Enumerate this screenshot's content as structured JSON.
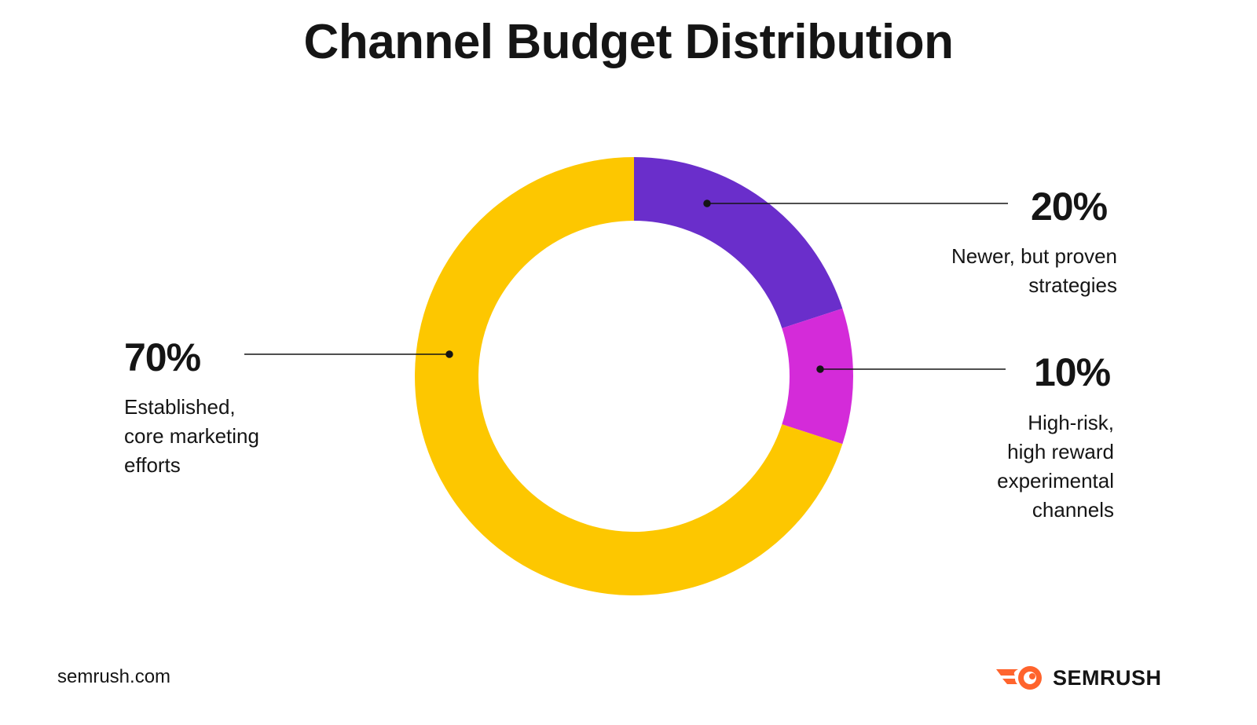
{
  "chart_data": {
    "type": "pie",
    "title": "Channel Budget Distribution",
    "categories": [
      "Newer, but proven strategies",
      "High-risk, high reward experimental channels",
      "Established, core marketing efforts"
    ],
    "values": [
      20,
      10,
      70
    ],
    "value_labels": [
      "20%",
      "10%",
      "70%"
    ],
    "colors": [
      "#6A2ECB",
      "#D42BD9",
      "#FDC700"
    ],
    "legend": "none"
  },
  "labels": {
    "seg20": {
      "pct": "20%",
      "desc": "Newer, but proven\nstrategies"
    },
    "seg10": {
      "pct": "10%",
      "desc": "High-risk,\nhigh reward\nexperimental\nchannels"
    },
    "seg70": {
      "pct": "70%",
      "desc": "Established,\ncore marketing\nefforts"
    }
  },
  "footer": {
    "site": "semrush.com",
    "brand": "SEMRUSH",
    "logo_icon": "semrush-flame-icon",
    "brand_color": "#FF642D"
  }
}
